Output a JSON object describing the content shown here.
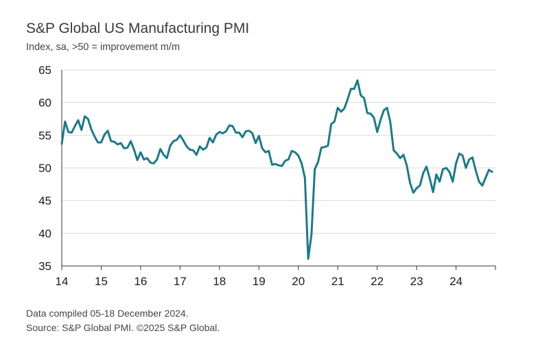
{
  "title": "S&P Global US Manufacturing PMI",
  "subtitle": "Index, sa, >50 = improvement m/m",
  "footer": {
    "line1": "Data compiled 05-18 December 2024.",
    "line2": "Source: S&P Global PMI. ©2025 S&P Global."
  },
  "colors": {
    "line": "#1a7a8a",
    "grid": "#d9d9d9",
    "axis": "#333333"
  },
  "chart_data": {
    "type": "line",
    "title": "S&P Global US Manufacturing PMI",
    "ylabel": "Index, sa, >50 = improvement m/m",
    "xlabel": "",
    "ylim": [
      35,
      65
    ],
    "yticks": [
      35,
      40,
      45,
      50,
      55,
      60,
      65
    ],
    "xlim": [
      2014.0,
      2025.0
    ],
    "xticks": [
      {
        "value": 2014.0,
        "label": "14"
      },
      {
        "value": 2015.0,
        "label": "15"
      },
      {
        "value": 2016.0,
        "label": "16"
      },
      {
        "value": 2017.0,
        "label": "17"
      },
      {
        "value": 2018.0,
        "label": "18"
      },
      {
        "value": 2019.0,
        "label": "19"
      },
      {
        "value": 2020.0,
        "label": "20"
      },
      {
        "value": 2021.0,
        "label": "21"
      },
      {
        "value": 2022.0,
        "label": "22"
      },
      {
        "value": 2023.0,
        "label": "23"
      },
      {
        "value": 2024.0,
        "label": "24"
      }
    ],
    "grid": "horizontal",
    "series": [
      {
        "name": "S&P Global US Manufacturing PMI",
        "start": "2014-01",
        "frequency": "monthly",
        "values": [
          53.7,
          57.1,
          55.5,
          55.4,
          56.4,
          57.3,
          55.8,
          57.9,
          57.5,
          55.9,
          54.8,
          53.9,
          53.9,
          55.1,
          55.7,
          54.1,
          54.0,
          53.6,
          53.8,
          53.0,
          53.1,
          54.1,
          52.8,
          51.2,
          52.4,
          51.3,
          51.5,
          50.8,
          50.7,
          51.3,
          52.9,
          52.0,
          51.5,
          53.4,
          54.1,
          54.3,
          55.0,
          54.2,
          53.3,
          52.8,
          52.7,
          52.0,
          53.3,
          52.8,
          53.1,
          54.6,
          53.9,
          55.1,
          55.5,
          55.3,
          55.6,
          56.5,
          56.4,
          55.4,
          55.4,
          54.7,
          55.6,
          55.7,
          55.3,
          53.8,
          54.9,
          53.0,
          52.4,
          52.6,
          50.5,
          50.6,
          50.4,
          50.3,
          51.1,
          51.3,
          52.6,
          52.4,
          51.9,
          50.7,
          48.5,
          36.1,
          39.8,
          49.8,
          50.9,
          53.1,
          53.2,
          53.4,
          56.7,
          57.1,
          59.2,
          58.6,
          59.1,
          60.5,
          62.1,
          62.1,
          63.4,
          61.1,
          60.7,
          58.4,
          58.3,
          57.7,
          55.5,
          57.3,
          58.8,
          59.2,
          57.0,
          52.7,
          52.2,
          51.5,
          52.0,
          50.4,
          47.7,
          46.2,
          46.9,
          47.3,
          49.2,
          50.2,
          48.4,
          46.3,
          49.0,
          47.9,
          49.8,
          50.0,
          49.4,
          47.9,
          50.7,
          52.2,
          51.9,
          50.0,
          51.3,
          51.6,
          49.6,
          47.9,
          47.3,
          48.5,
          49.7,
          49.4
        ]
      }
    ]
  }
}
